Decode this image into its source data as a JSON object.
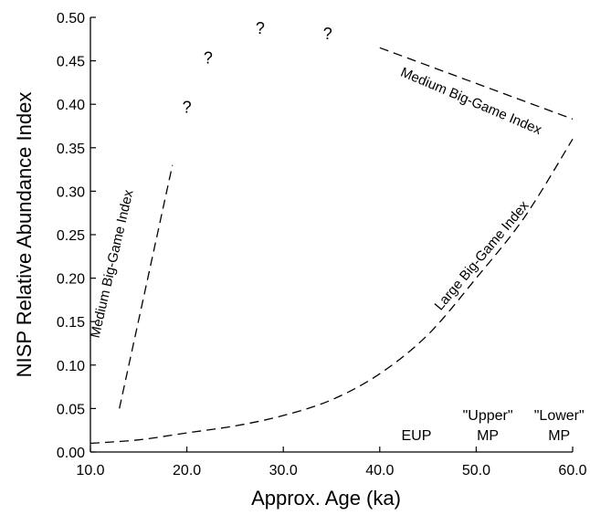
{
  "chart_data": {
    "type": "line",
    "xlabel": "Approx. Age (ka)",
    "ylabel": "NISP Relative Abundance Index",
    "xlim": [
      10,
      60
    ],
    "ylim": [
      0,
      0.5
    ],
    "x_ticks": [
      "10.0",
      "20.0",
      "30.0",
      "40.0",
      "50.0",
      "60.0"
    ],
    "y_ticks": [
      "0.00",
      "0.05",
      "0.10",
      "0.15",
      "0.20",
      "0.25",
      "0.30",
      "0.35",
      "0.40",
      "0.45",
      "0.50"
    ],
    "grid": false,
    "series": [
      {
        "name": "Medium Big-Game Index",
        "points": [
          [
            13.0,
            0.05
          ],
          [
            18.5,
            0.33
          ]
        ]
      },
      {
        "name": "Medium Big-Game Index",
        "points": [
          [
            40.0,
            0.465
          ],
          [
            60.0,
            0.383
          ]
        ]
      },
      {
        "name": "Large Big-Game Index",
        "points": [
          [
            10,
            0.01
          ],
          [
            15,
            0.014
          ],
          [
            20,
            0.022
          ],
          [
            25,
            0.03
          ],
          [
            30,
            0.042
          ],
          [
            35,
            0.06
          ],
          [
            40,
            0.09
          ],
          [
            45,
            0.135
          ],
          [
            50,
            0.2
          ],
          [
            55,
            0.27
          ],
          [
            60,
            0.36
          ]
        ]
      }
    ],
    "annotations": {
      "question_marks": [
        {
          "text": "?",
          "x": 20.0,
          "y": 0.39
        },
        {
          "text": "?",
          "x": 22.2,
          "y": 0.447
        },
        {
          "text": "?",
          "x": 27.6,
          "y": 0.481
        },
        {
          "text": "?",
          "x": 34.6,
          "y": 0.475
        }
      ],
      "periods": [
        {
          "lines": [
            "EUP"
          ],
          "x": 43.8
        },
        {
          "lines": [
            "\"Upper\"",
            "MP"
          ],
          "x": 51.2
        },
        {
          "lines": [
            "\"Lower\"",
            "MP"
          ],
          "x": 58.6
        }
      ]
    }
  }
}
